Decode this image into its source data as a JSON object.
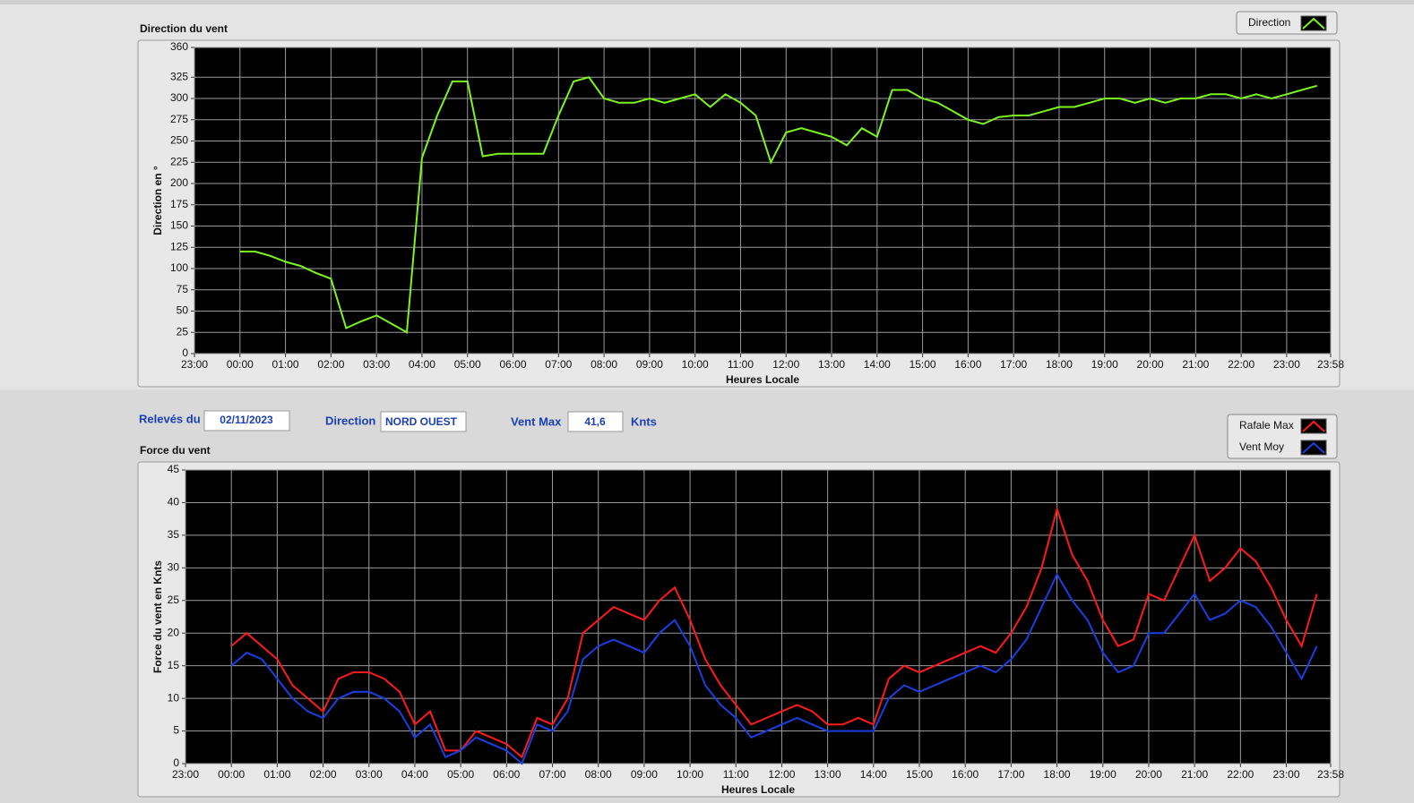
{
  "controls": {
    "date_label": "Relevés du",
    "date": "02/11/2023",
    "direction_label": "Direction",
    "direction": "NORD OUEST",
    "vmax_label": "Vent Max",
    "vmax": "41,6",
    "vmax_unit": "Knts"
  },
  "chart_data": [
    {
      "type": "line",
      "title": "Direction du vent",
      "x_label": "Heures Locale",
      "y_label": "Direction en °",
      "x": [
        "00:00",
        "00:20",
        "00:40",
        "01:00",
        "01:20",
        "01:40",
        "02:00",
        "02:20",
        "02:40",
        "03:00",
        "03:20",
        "03:40",
        "04:00",
        "04:20",
        "04:40",
        "05:00",
        "05:20",
        "05:40",
        "06:00",
        "06:20",
        "06:40",
        "07:00",
        "07:20",
        "07:40",
        "08:00",
        "08:20",
        "08:40",
        "09:00",
        "09:20",
        "09:40",
        "10:00",
        "10:20",
        "10:40",
        "11:00",
        "11:20",
        "11:40",
        "12:00",
        "12:20",
        "12:40",
        "13:00",
        "13:20",
        "13:40",
        "14:00",
        "14:20",
        "14:40",
        "15:00",
        "15:20",
        "15:40",
        "16:00",
        "16:20",
        "16:40",
        "17:00",
        "17:20",
        "17:40",
        "18:00",
        "18:20",
        "18:40",
        "19:00",
        "19:20",
        "19:40",
        "20:00",
        "20:20",
        "20:40",
        "21:00",
        "21:20",
        "21:40",
        "22:00",
        "22:20",
        "22:40",
        "23:00",
        "23:20",
        "23:40"
      ],
      "series": [
        {
          "name": "Direction",
          "color": "#7cf51f",
          "values": [
            120,
            120,
            115,
            108,
            103,
            95,
            88,
            30,
            38,
            45,
            35,
            25,
            230,
            280,
            320,
            320,
            232,
            235,
            235,
            235,
            235,
            280,
            320,
            325,
            300,
            295,
            295,
            300,
            295,
            300,
            305,
            290,
            305,
            295,
            280,
            225,
            260,
            265,
            260,
            255,
            245,
            265,
            255,
            310,
            310,
            300,
            295,
            285,
            275,
            270,
            278,
            280,
            280,
            285,
            290,
            290,
            295,
            300,
            300,
            295,
            300,
            295,
            300,
            300,
            305,
            305,
            300,
            305,
            300,
            305,
            310,
            315
          ]
        }
      ],
      "xticks": [
        "23:00",
        "00:00",
        "01:00",
        "02:00",
        "03:00",
        "04:00",
        "05:00",
        "06:00",
        "07:00",
        "08:00",
        "09:00",
        "10:00",
        "11:00",
        "12:00",
        "13:00",
        "14:00",
        "15:00",
        "16:00",
        "17:00",
        "18:00",
        "19:00",
        "20:00",
        "21:00",
        "22:00",
        "23:00",
        "23:58"
      ],
      "ylim": [
        0,
        360
      ],
      "yticks": [
        0,
        25,
        50,
        75,
        100,
        125,
        150,
        175,
        200,
        225,
        250,
        275,
        300,
        325,
        360
      ],
      "grid": true
    },
    {
      "type": "line",
      "title": "Force du vent",
      "x_label": "Heures Locale",
      "y_label": "Force du vent en Knts",
      "x": [
        "00:00",
        "00:20",
        "00:40",
        "01:00",
        "01:20",
        "01:40",
        "02:00",
        "02:20",
        "02:40",
        "03:00",
        "03:20",
        "03:40",
        "04:00",
        "04:20",
        "04:40",
        "05:00",
        "05:20",
        "05:40",
        "06:00",
        "06:20",
        "06:40",
        "07:00",
        "07:20",
        "07:40",
        "08:00",
        "08:20",
        "08:40",
        "09:00",
        "09:20",
        "09:40",
        "10:00",
        "10:20",
        "10:40",
        "11:00",
        "11:20",
        "11:40",
        "12:00",
        "12:20",
        "12:40",
        "13:00",
        "13:20",
        "13:40",
        "14:00",
        "14:20",
        "14:40",
        "15:00",
        "15:20",
        "15:40",
        "16:00",
        "16:20",
        "16:40",
        "17:00",
        "17:20",
        "17:40",
        "18:00",
        "18:20",
        "18:40",
        "19:00",
        "19:20",
        "19:40",
        "20:00",
        "20:20",
        "20:40",
        "21:00",
        "21:20",
        "21:40",
        "22:00",
        "22:20",
        "22:40",
        "23:00",
        "23:20",
        "23:40"
      ],
      "series": [
        {
          "name": "Rafale Max",
          "color": "#ff1a1a",
          "values": [
            18,
            20,
            18,
            16,
            12,
            10,
            8,
            13,
            14,
            14,
            13,
            11,
            6,
            8,
            2,
            2,
            5,
            4,
            3,
            1,
            7,
            6,
            10,
            20,
            22,
            24,
            23,
            22,
            25,
            27,
            22,
            16,
            12,
            9,
            6,
            7,
            8,
            9,
            8,
            6,
            6,
            7,
            6,
            13,
            15,
            14,
            15,
            16,
            17,
            18,
            17,
            20,
            24,
            30,
            39,
            32,
            28,
            22,
            18,
            19,
            26,
            25,
            30,
            35,
            28,
            30,
            33,
            31,
            27,
            22,
            18,
            26
          ]
        },
        {
          "name": "Vent Moy",
          "color": "#1a3fe0",
          "values": [
            15,
            17,
            16,
            13,
            10,
            8,
            7,
            10,
            11,
            11,
            10,
            8,
            4,
            6,
            1,
            2,
            4,
            3,
            2,
            0,
            6,
            5,
            8,
            16,
            18,
            19,
            18,
            17,
            20,
            22,
            18,
            12,
            9,
            7,
            4,
            5,
            6,
            7,
            6,
            5,
            5,
            5,
            5,
            10,
            12,
            11,
            12,
            13,
            14,
            15,
            14,
            16,
            19,
            24,
            29,
            25,
            22,
            17,
            14,
            15,
            20,
            20,
            23,
            26,
            22,
            23,
            25,
            24,
            21,
            17,
            13,
            18
          ]
        }
      ],
      "xticks": [
        "23:00",
        "00:00",
        "01:00",
        "02:00",
        "03:00",
        "04:00",
        "05:00",
        "06:00",
        "07:00",
        "08:00",
        "09:00",
        "10:00",
        "11:00",
        "12:00",
        "13:00",
        "14:00",
        "15:00",
        "16:00",
        "17:00",
        "18:00",
        "19:00",
        "20:00",
        "21:00",
        "22:00",
        "23:00",
        "23:58"
      ],
      "ylim": [
        0,
        45
      ],
      "yticks": [
        0,
        5,
        10,
        15,
        20,
        25,
        30,
        35,
        40,
        45
      ],
      "grid": true
    }
  ]
}
